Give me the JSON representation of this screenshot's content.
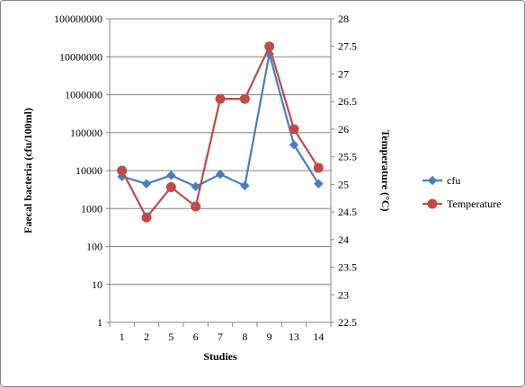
{
  "chart_data": {
    "type": "line",
    "categories": [
      "1",
      "2",
      "5",
      "6",
      "7",
      "8",
      "9",
      "13",
      "14"
    ],
    "series": [
      {
        "name": "cfu",
        "axis": "left",
        "color": "#4a7ebb",
        "marker": "diamond",
        "values": [
          7000,
          4500,
          7500,
          3800,
          8000,
          4000,
          12000000,
          48000,
          4500
        ]
      },
      {
        "name": "Temperature",
        "axis": "right",
        "color": "#be4b48",
        "marker": "circle",
        "values": [
          25.25,
          24.4,
          24.95,
          24.6,
          26.55,
          26.55,
          27.5,
          26.0,
          25.3
        ]
      }
    ],
    "xlabel": "Studies",
    "ylabel_left": "Faecal bacteria (cfu/100ml)",
    "ylabel_right": "Temperature (°C)",
    "ylim_left": [
      1,
      100000000
    ],
    "yscale_left": "log",
    "yticks_left": [
      "1",
      "10",
      "100",
      "1000",
      "10000",
      "100000",
      "1000000",
      "10000000",
      "100000000"
    ],
    "ylim_right": [
      22.5,
      28
    ],
    "yticks_right": [
      "22.5",
      "23",
      "23.5",
      "24",
      "24.5",
      "25",
      "25.5",
      "26",
      "26.5",
      "27",
      "27.5",
      "28"
    ],
    "grid": "horizontal",
    "legend": "right"
  }
}
